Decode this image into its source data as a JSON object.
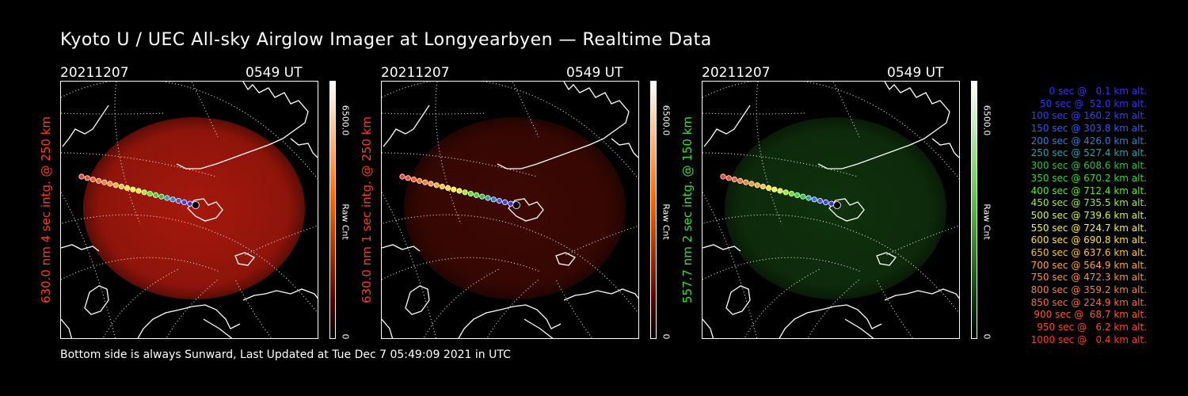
{
  "title": "Kyoto U / UEC All-sky Airglow Imager at Longyearbyen — Realtime Data",
  "footer": "Bottom side is always Sunward, Last Updated at Tue Dec  7 05:49:09 2021 in UTC",
  "panels": [
    {
      "date": "20211207",
      "time": "0549 UT",
      "ylabel": "630.0 nm 4 sec intg. @ 250 km",
      "label_color": "#ff3b1f",
      "glow_color": "#d61f10",
      "glow_opacity": 0.78,
      "cbar_top_color": "#ffffff",
      "cbar_mid_color": "#ff6a00",
      "cbar_low_color": "#5a0000",
      "cbar_max": "6500.0",
      "cbar_unit": "Raw Cnt",
      "cbar_min": "0"
    },
    {
      "date": "20211207",
      "time": "0549 UT",
      "ylabel": "630.0 nm 1 sec intg. @ 250 km",
      "label_color": "#ff3b1f",
      "glow_color": "#8a1208",
      "glow_opacity": 0.45,
      "cbar_top_color": "#ffffff",
      "cbar_mid_color": "#ff6a00",
      "cbar_low_color": "#5a0000",
      "cbar_max": "6500.0",
      "cbar_unit": "Raw Cnt",
      "cbar_min": "0"
    },
    {
      "date": "20211207",
      "time": "0549 UT",
      "ylabel": "557.7 nm 2 sec intg. @ 150 km",
      "label_color": "#3ddc3d",
      "glow_color": "#1c5a16",
      "glow_opacity": 0.55,
      "cbar_top_color": "#ffffff",
      "cbar_mid_color": "#5ec84a",
      "cbar_low_color": "#0a3a0a",
      "cbar_max": "6500.0",
      "cbar_unit": "Raw Cnt",
      "cbar_min": "0"
    }
  ],
  "legend": [
    {
      "text": "0 sec @   0.1 km alt.",
      "color": "#3b2dff"
    },
    {
      "text": "50 sec @  52.0 km alt.",
      "color": "#3b2dff"
    },
    {
      "text": "100 sec @ 160.2 km alt.",
      "color": "#3b3dff"
    },
    {
      "text": "150 sec @ 303.8 km alt.",
      "color": "#3a55ff"
    },
    {
      "text": "200 sec @ 426.0 km alt.",
      "color": "#2f7ee0"
    },
    {
      "text": "250 sec @ 527.4 km alt.",
      "color": "#2aa0a8"
    },
    {
      "text": "300 sec @ 608.6 km alt.",
      "color": "#2fbf4a"
    },
    {
      "text": "350 sec @ 670.2 km alt.",
      "color": "#3ad82a"
    },
    {
      "text": "400 sec @ 712.4 km alt.",
      "color": "#5fe82a"
    },
    {
      "text": "450 sec @ 735.5 km alt.",
      "color": "#9ef02a"
    },
    {
      "text": "500 sec @ 739.6 km alt.",
      "color": "#d8f52a"
    },
    {
      "text": "550 sec @ 724.7 km alt.",
      "color": "#f7f52a"
    },
    {
      "text": "600 sec @ 690.8 km alt.",
      "color": "#ffe22a"
    },
    {
      "text": "650 sec @ 637.6 km alt.",
      "color": "#ffc52a"
    },
    {
      "text": "700 sec @ 564.9 km alt.",
      "color": "#ffaa2a"
    },
    {
      "text": "750 sec @ 472.3 km alt.",
      "color": "#ff952a"
    },
    {
      "text": "800 sec @ 359.2 km alt.",
      "color": "#ff802a"
    },
    {
      "text": "850 sec @ 224.9 km alt.",
      "color": "#ff6d2a"
    },
    {
      "text": "900 sec @  68.7 km alt.",
      "color": "#ff5a2a"
    },
    {
      "text": "950 sec @   6.2 km alt.",
      "color": "#ff4a2a"
    },
    {
      "text": "1000 sec @   0.4 km alt.",
      "color": "#ff3a2a"
    }
  ]
}
